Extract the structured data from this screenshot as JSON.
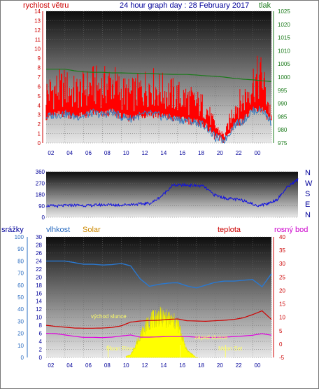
{
  "header": {
    "left_label": "rychlost větru",
    "title": "24 hour graph day : 28 February 2017",
    "right_label": "tlak"
  },
  "colors": {
    "wind": "#ff0000",
    "wind_avg": "#3a7fc0",
    "pressure": "#1b7a1b",
    "direction": "#1010e0",
    "humidity": "#2a78d0",
    "temperature": "#d00000",
    "dew_point": "#e000e0",
    "solar": "#ffff00",
    "rain": "#2060c0",
    "axis_red": "#cc0000",
    "axis_green": "#1a7a1a",
    "axis_blue": "#2a6cc0",
    "axis_navy": "#000099",
    "axis_orange": "#cc8800",
    "axis_magenta": "#cc00cc"
  },
  "chart_data": [
    {
      "type": "line",
      "title": "24 hour graph day : 28 February 2017",
      "x_ticks": [
        "02",
        "04",
        "06",
        "08",
        "10",
        "12",
        "14",
        "16",
        "18",
        "20",
        "22",
        "00"
      ],
      "left_axis": {
        "label": "rychlost větru",
        "range": [
          0,
          14
        ],
        "ticks": [
          "0",
          "1",
          "2",
          "3",
          "4",
          "5",
          "6",
          "7",
          "8",
          "9",
          "10",
          "11",
          "12",
          "13",
          "14"
        ]
      },
      "right_axis": {
        "label": "tlak",
        "range": [
          975,
          1025
        ],
        "ticks": [
          "975",
          "980",
          "985",
          "990",
          "995",
          "1000",
          "1005",
          "1010",
          "1015",
          "1020",
          "1025"
        ]
      },
      "x": [
        0,
        1,
        2,
        3,
        4,
        5,
        6,
        7,
        8,
        9,
        10,
        11,
        12,
        13,
        14,
        15,
        16,
        17,
        18,
        19,
        20,
        21,
        22,
        23,
        24
      ],
      "series": [
        {
          "name": "rychlost větru",
          "values": [
            4.5,
            4.8,
            5.0,
            4.5,
            4.8,
            5.2,
            5.0,
            5.5,
            4.6,
            4.3,
            4.7,
            5.2,
            4.8,
            4.5,
            4.2,
            4.0,
            3.6,
            3.2,
            1.5,
            0.6,
            3.2,
            3.8,
            5.5,
            6.0,
            2.4
          ]
        },
        {
          "name": "rychlost větru průměr",
          "values": [
            2.8,
            3.0,
            3.1,
            2.8,
            2.9,
            3.2,
            3.0,
            3.3,
            2.8,
            2.6,
            2.9,
            3.1,
            2.9,
            2.7,
            2.5,
            2.4,
            2.2,
            1.8,
            0.6,
            0.2,
            1.9,
            2.4,
            3.4,
            3.6,
            2.2
          ]
        },
        {
          "name": "tlak",
          "values": [
            1003.0,
            1003.0,
            1003.0,
            1002.4,
            1002.0,
            1001.8,
            1001.8,
            1001.6,
            1001.6,
            1001.5,
            1001.4,
            1001.4,
            1001.2,
            1001.1,
            1001.0,
            1001.0,
            1000.8,
            1000.5,
            1000.3,
            1000.0,
            999.5,
            999.2,
            999.0,
            998.6,
            998.3
          ]
        }
      ]
    },
    {
      "type": "line",
      "x_ticks": [
        "02",
        "04",
        "06",
        "08",
        "10",
        "12",
        "14",
        "16",
        "18",
        "20",
        "22",
        "00"
      ],
      "left_axis": {
        "range": [
          0,
          360
        ],
        "ticks": [
          "0",
          "90",
          "180",
          "270",
          "360"
        ]
      },
      "right_axis": {
        "ticks": [
          "N",
          "W",
          "S",
          "E",
          "N"
        ]
      },
      "x": [
        0,
        1,
        2,
        3,
        4,
        5,
        6,
        7,
        8,
        9,
        10,
        11,
        12,
        13,
        14,
        15,
        16,
        17,
        18,
        19,
        20,
        21,
        22,
        23,
        24
      ],
      "series": [
        {
          "name": "směr větru",
          "values": [
            92,
            88,
            94,
            96,
            92,
            98,
            100,
            96,
            102,
            105,
            112,
            168,
            250,
            255,
            252,
            245,
            178,
            152,
            142,
            130,
            92,
            105,
            140,
            240,
            300
          ]
        }
      ]
    },
    {
      "type": "area",
      "legend": [
        "srážky",
        "vlhkost",
        "Solar",
        "teplota",
        "rosný bod"
      ],
      "x_ticks": [
        "02",
        "04",
        "06",
        "08",
        "10",
        "12",
        "14",
        "16",
        "18",
        "20",
        "22",
        "00"
      ],
      "axes": {
        "rain": {
          "label": "srážky",
          "range": [
            0,
            100
          ],
          "ticks": [
            "0",
            "10",
            "20",
            "30",
            "40",
            "50",
            "60",
            "70",
            "80",
            "90",
            "100"
          ]
        },
        "humidity": {
          "label": "vlhkost",
          "range": [
            0,
            30
          ],
          "ticks": [
            "0",
            "2",
            "4",
            "6",
            "8",
            "10",
            "12",
            "14",
            "16",
            "18",
            "20",
            "22",
            "24",
            "26",
            "28",
            "30"
          ]
        },
        "temperature": {
          "label": "teplota",
          "range": [
            -5,
            40
          ],
          "ticks": [
            "-5",
            "0",
            "5",
            "10",
            "15",
            "20",
            "25",
            "30",
            "35",
            "40"
          ]
        }
      },
      "annotations": [
        "východ slunce",
        "západ slunce",
        "Moon Rise",
        "Moon Set"
      ],
      "x": [
        0,
        1,
        2,
        3,
        4,
        5,
        6,
        7,
        8,
        9,
        10,
        11,
        12,
        13,
        14,
        15,
        16,
        17,
        18,
        19,
        20,
        21,
        22,
        23,
        24
      ],
      "series": [
        {
          "name": "vlhkost",
          "values": [
            24,
            24,
            24,
            23.6,
            23.2,
            23.2,
            23.0,
            23.1,
            23.4,
            22.8,
            19.6,
            17.7,
            18.2,
            18.5,
            18.6,
            17.8,
            17.3,
            18.0,
            18.7,
            19.0,
            19.0,
            19.2,
            19.4,
            17.6,
            20.8
          ]
        },
        {
          "name": "teplota",
          "values": [
            7.0,
            6.6,
            6.3,
            6.0,
            5.9,
            5.9,
            6.0,
            6.2,
            6.8,
            8.2,
            8.6,
            8.8,
            8.9,
            9.2,
            9.4,
            8.7,
            8.6,
            8.5,
            8.7,
            8.9,
            9.2,
            9.8,
            11.0,
            12.4,
            9.2
          ]
        },
        {
          "name": "rosný bod",
          "values": [
            4.0,
            3.9,
            3.4,
            2.9,
            2.5,
            2.5,
            2.4,
            2.6,
            3.0,
            3.4,
            2.6,
            2.6,
            2.7,
            2.8,
            2.8,
            2.8,
            2.6,
            2.5,
            2.5,
            2.6,
            2.8,
            3.0,
            3.3,
            3.9,
            3.3
          ]
        },
        {
          "name": "Solar",
          "values": [
            0,
            0,
            0,
            0,
            0,
            0,
            0,
            0,
            0,
            2,
            18,
            30,
            34,
            32,
            28,
            6,
            0,
            0,
            0,
            0,
            0,
            0,
            0,
            0,
            0
          ]
        }
      ]
    }
  ]
}
